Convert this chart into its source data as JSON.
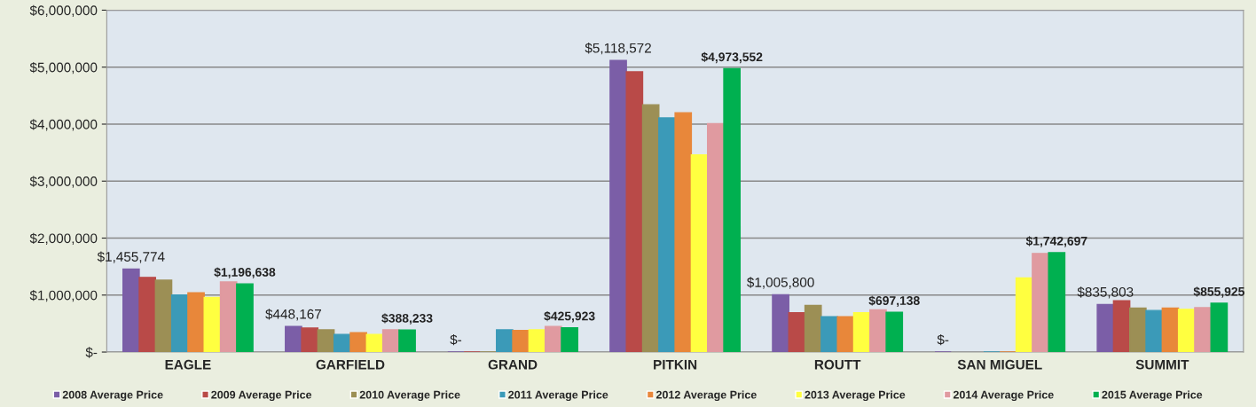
{
  "chart_data": {
    "type": "bar",
    "categories": [
      "EAGLE",
      "GARFIELD",
      "GRAND",
      "PITKIN",
      "ROUTT",
      "SAN MIGUEL",
      "SUMMIT"
    ],
    "series": [
      {
        "name": "2008 Average Price",
        "color": "#7b5ea7",
        "values": [
          1455774,
          448167,
          0,
          5118572,
          1005800,
          0,
          835803
        ],
        "value_labels": [
          "$1,455,774",
          "$448,167",
          "$-",
          "$5,118,572",
          "$1,005,800",
          "$-",
          "$835,803"
        ]
      },
      {
        "name": "2009 Average Price",
        "color": "#b94a48",
        "values": [
          1310000,
          420000,
          0,
          4920000,
          690000,
          null,
          900000
        ]
      },
      {
        "name": "2010 Average Price",
        "color": "#9c8f55",
        "values": [
          1260000,
          390000,
          0,
          4340000,
          820000,
          null,
          770000
        ]
      },
      {
        "name": "2011 Average Price",
        "color": "#3b9ab8",
        "values": [
          1000000,
          310000,
          390000,
          4110000,
          620000,
          0,
          730000
        ]
      },
      {
        "name": "2012 Average Price",
        "color": "#e8873a",
        "values": [
          1040000,
          340000,
          380000,
          4200000,
          620000,
          0,
          770000
        ]
      },
      {
        "name": "2013 Average Price",
        "color": "#ffff40",
        "values": [
          960000,
          310000,
          390000,
          3460000,
          690000,
          1300000,
          750000
        ]
      },
      {
        "name": "2014 Average Price",
        "color": "#e09aa0",
        "values": [
          1230000,
          390000,
          450000,
          4010000,
          740000,
          1730000,
          780000
        ]
      },
      {
        "name": "2015 Average Price",
        "color": "#00b050",
        "values": [
          1196638,
          388233,
          425923,
          4973552,
          697138,
          1742697,
          855925
        ],
        "value_labels": [
          "$1,196,638",
          "$388,233",
          "$425,923",
          "$4,973,552",
          "$697,138",
          "$1,742,697",
          "$855,925"
        ]
      }
    ],
    "ylim": [
      0,
      6000000
    ],
    "yticks": [
      {
        "value": 0,
        "label": "$-"
      },
      {
        "value": 1000000,
        "label": "$1,000,000"
      },
      {
        "value": 2000000,
        "label": "$2,000,000"
      },
      {
        "value": 3000000,
        "label": "$3,000,000"
      },
      {
        "value": 4000000,
        "label": "$4,000,000"
      },
      {
        "value": 5000000,
        "label": "$5,000,000"
      },
      {
        "value": 6000000,
        "label": "$6,000,000"
      }
    ],
    "grid": "y",
    "legend": "bottom"
  }
}
